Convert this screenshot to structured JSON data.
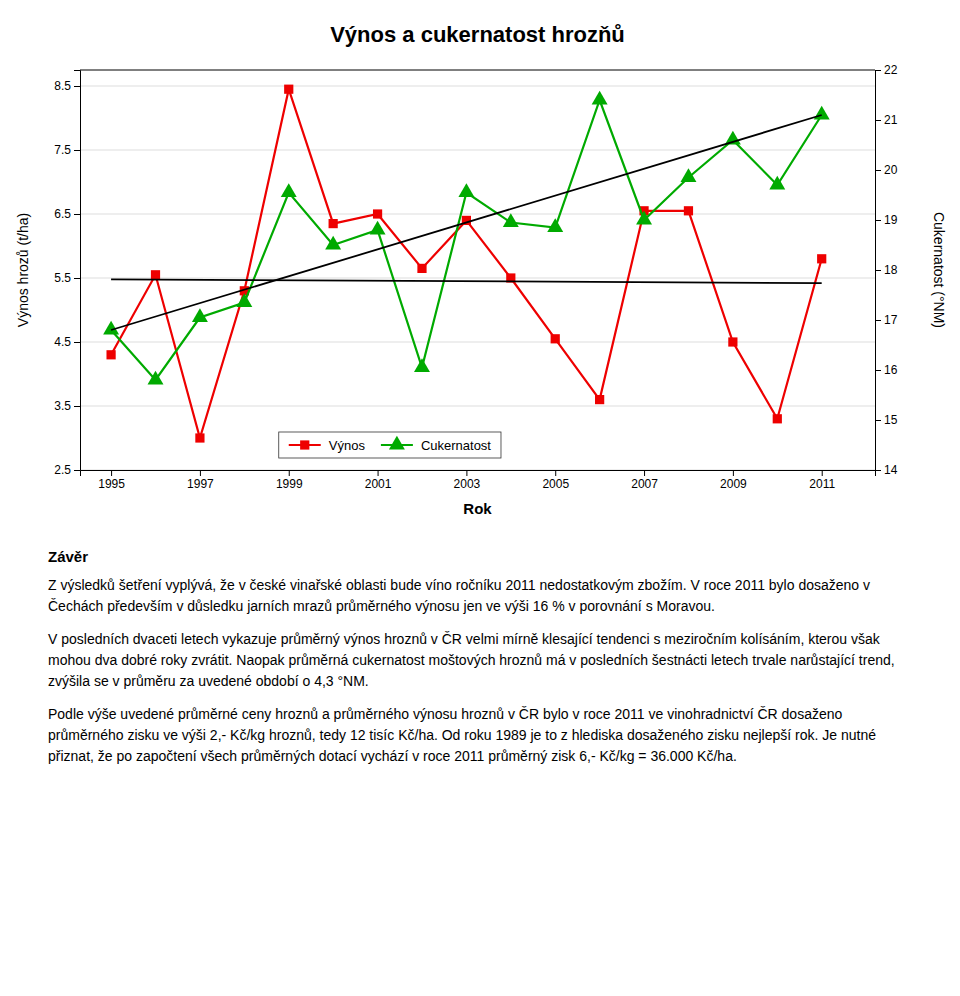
{
  "chart_data": {
    "type": "line",
    "title": "Výnos a cukernatost hrozňů",
    "xlabel": "Rok",
    "ylabel": "Výnos hrozů (t/ha)",
    "y2label": "Cukernatost (°NM)",
    "x": [
      1995,
      1996,
      1997,
      1998,
      1999,
      2000,
      2001,
      2002,
      2003,
      2004,
      2005,
      2006,
      2007,
      2008,
      2009,
      2010,
      2011
    ],
    "series": [
      {
        "name": "Výnos",
        "color": "#EE0000",
        "marker": "square",
        "values": [
          4.3,
          5.55,
          3.0,
          5.3,
          8.45,
          6.35,
          6.5,
          5.65,
          6.4,
          5.5,
          4.55,
          3.6,
          6.55,
          6.55,
          4.5,
          3.3,
          5.8
        ]
      },
      {
        "name": "Cukernatost",
        "color": "#00AA00",
        "marker": "triangle",
        "axis": "y2",
        "values": [
          16.8,
          15.8,
          17.05,
          17.35,
          19.55,
          18.5,
          18.8,
          16.05,
          19.55,
          18.95,
          18.85,
          21.4,
          19.0,
          19.85,
          20.6,
          19.7,
          21.1
        ]
      },
      {
        "color": "#000000",
        "x": [
          1995,
          2011
        ],
        "values": [
          5.48,
          5.42
        ]
      },
      {
        "color": "#000000",
        "x": [
          1995,
          2011
        ],
        "values": [
          16.8,
          21.1
        ],
        "axis": "y2"
      }
    ],
    "xlim": [
      1994.3,
      2012.2
    ],
    "xticks": [
      1995,
      1997,
      1999,
      2001,
      2003,
      2005,
      2007,
      2009,
      2011
    ],
    "ylim": [
      2.5,
      8.75
    ],
    "yticks": [
      2.5,
      3.5,
      4.5,
      5.5,
      6.5,
      7.5,
      8.5
    ],
    "y2lim": [
      14.0,
      22.0
    ],
    "y2ticks": [
      14,
      15,
      16,
      17,
      18,
      19,
      20,
      21,
      22
    ],
    "grid": true,
    "legend": "lower-left",
    "annotations": [
      "Závěr",
      "Z výsledků šetření vyplývá, že v české vinařské oblasti bude víno ročníku 2011 nedostatkovým zbožím. V roce 2011 bylo dosaženo v Čechách především v důsledku jarních mrazů průměrného výnosu jen ve výši 16 % v porovnání s Moravou.",
      "V posledních dvaceti letech vykazuje průměrný výnos hroznů v ČR velmi mírně klesající tendenci s meziročním kolísáním, kterou však mohou dva dobré roky zvrátit. Naopak průměrná cukernatost moštových hroznů má v posledních šestnácti letech trvale narůstající trend, zvýšila se v průměru za uvedené období o 4,3 °NM.",
      "Podle výše uvedené průměrné ceny hroznů a průměrného výnosu hroznů v ČR bylo v roce 2011 ve vinohradnictví ČR dosaženo průměrného zisku ve výši 2,- Kč/kg hroznů, tedy 12 tisíc Kč/ha. Od roku 1989 je to z hlediska dosaženého zisku nejlepší rok. Je nutné přiznat, že po započtení všech průměrných dotací vychází v roce 2011 průměrný zisk 6,- Kč/kg = 36.000 Kč/ha."
    ]
  }
}
